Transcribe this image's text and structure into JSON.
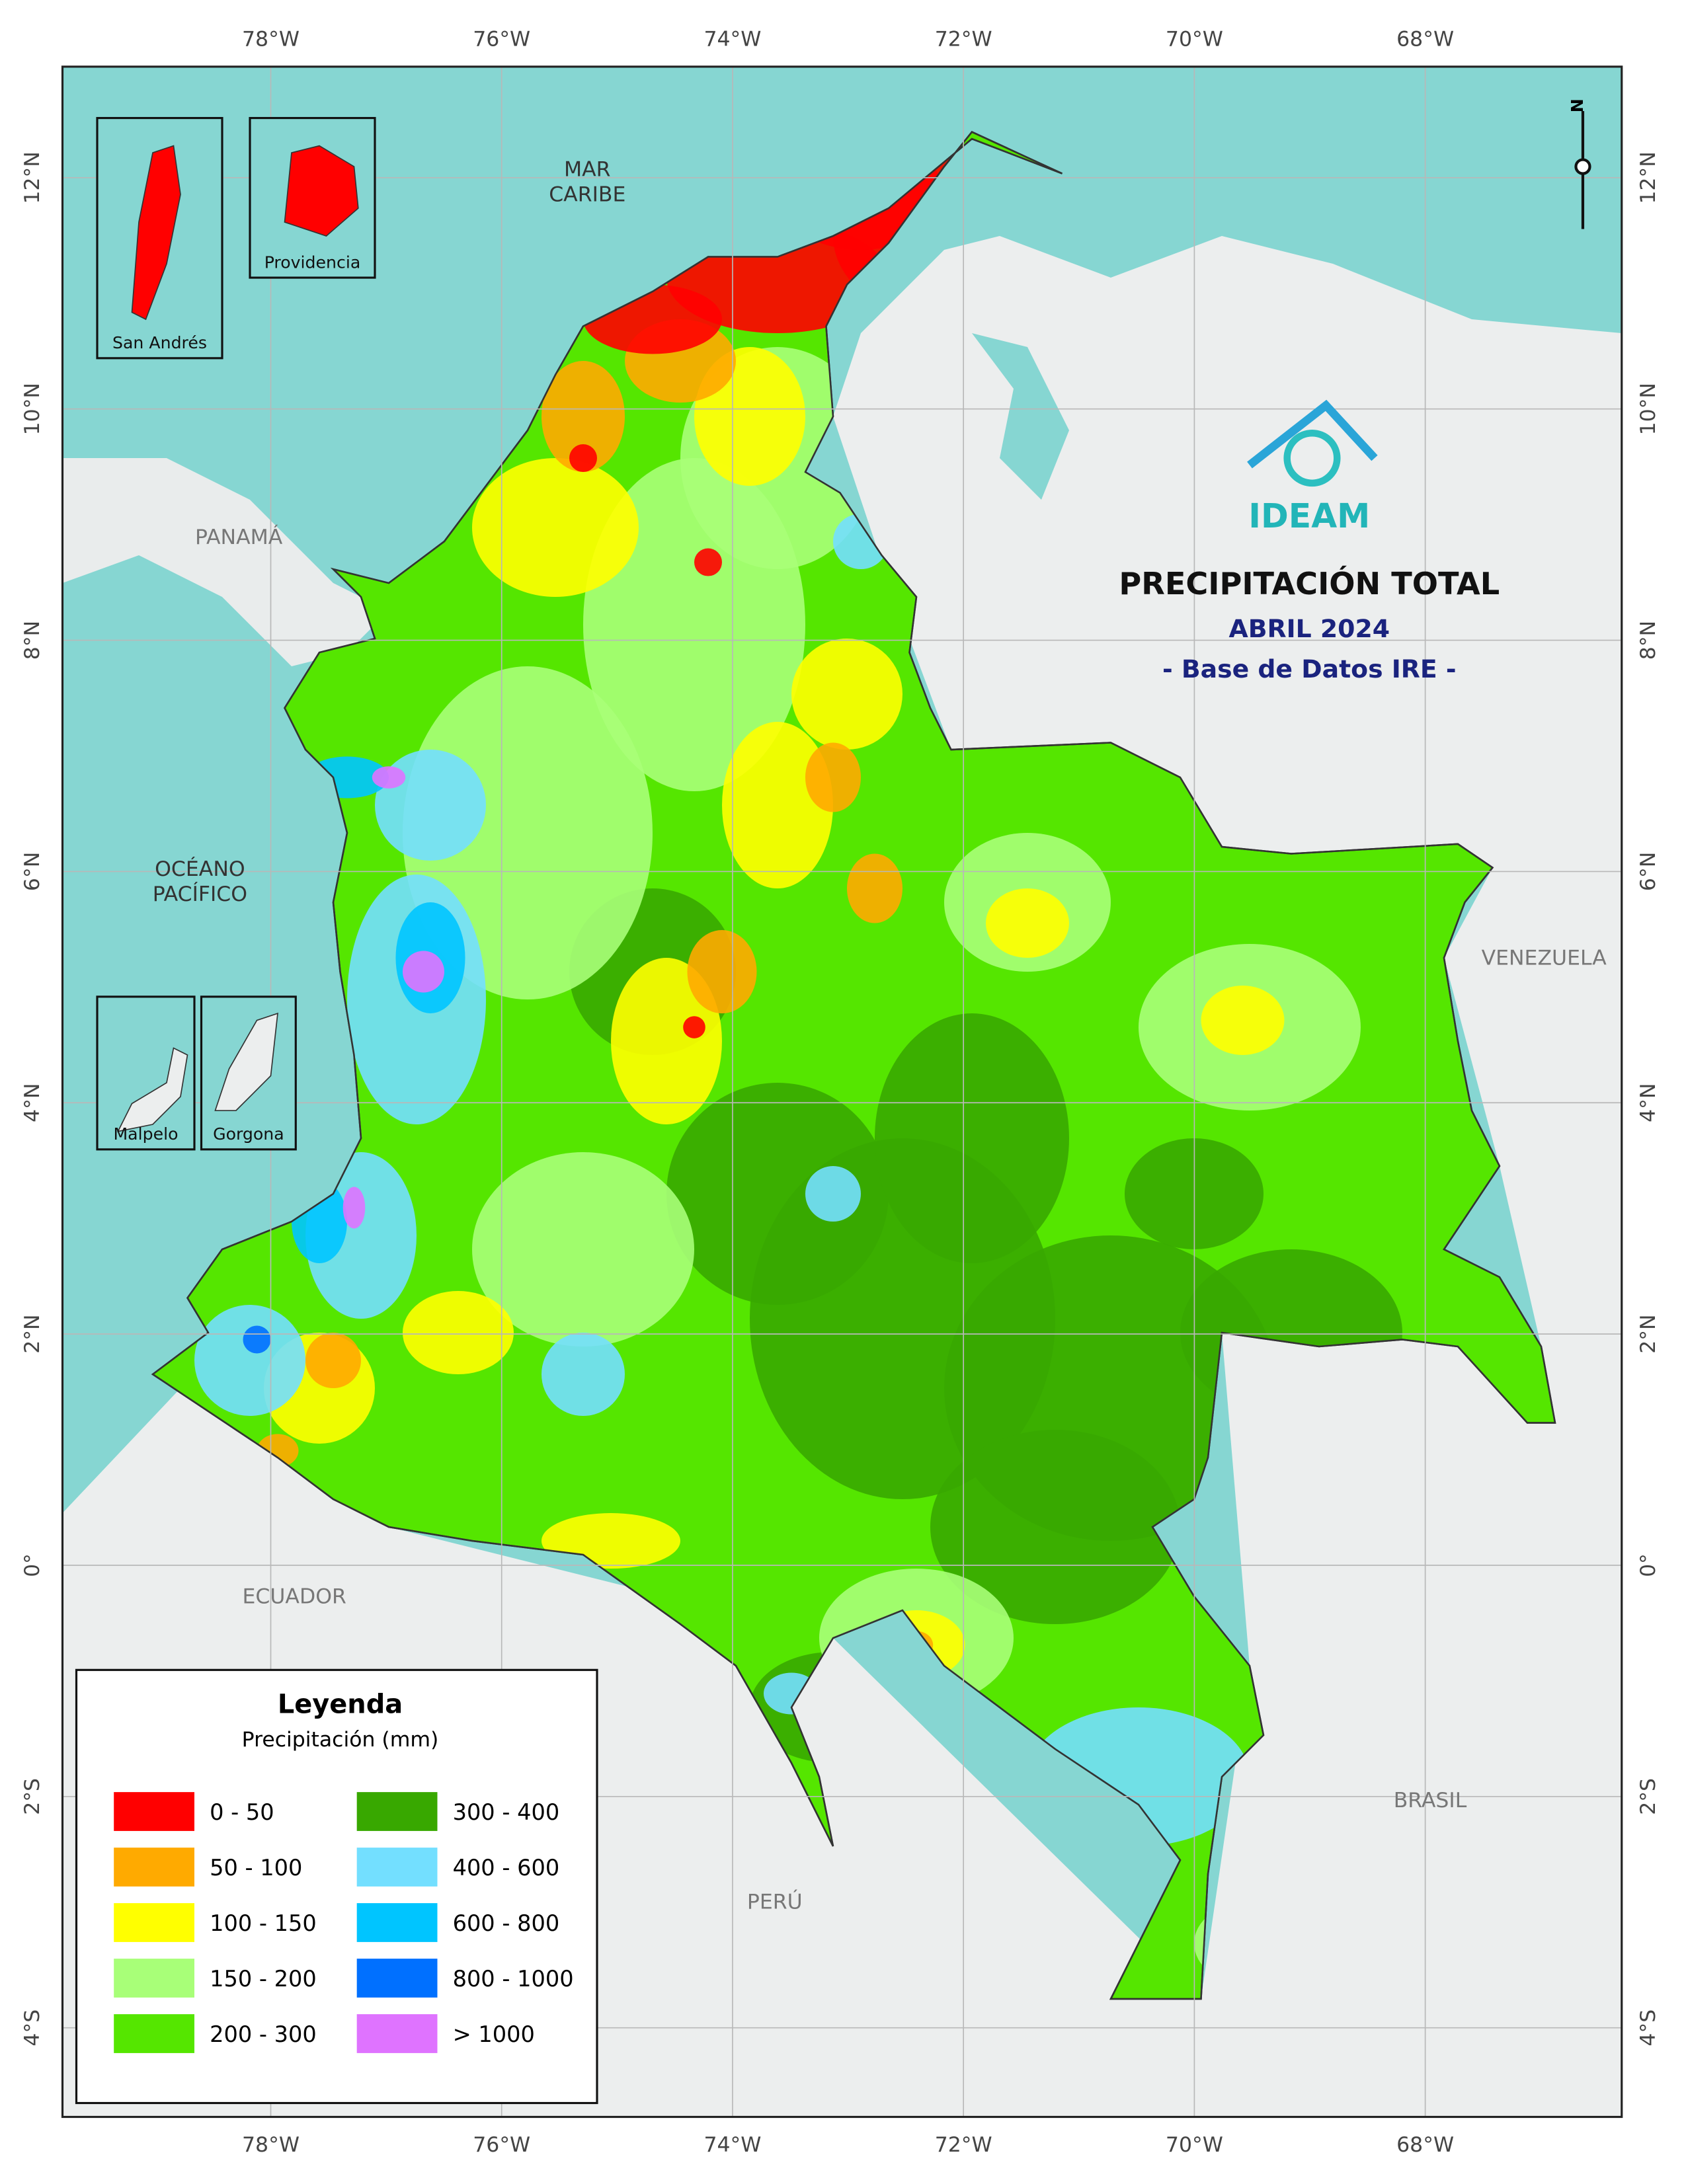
{
  "map": {
    "title": "PRECIPITACIÓN TOTAL",
    "subtitle": "ABRIL 2024",
    "source": "- Base de Datos IRE -",
    "logo_text": "IDEAM",
    "north_arrow": "N",
    "longitudes": [
      "78°W",
      "76°W",
      "74°W",
      "72°W",
      "70°W",
      "68°W"
    ],
    "latitudes": [
      "12°N",
      "10°N",
      "8°N",
      "6°N",
      "4°N",
      "2°N",
      "0°",
      "2°S",
      "4°S"
    ],
    "sea_labels": [
      [
        "MAR",
        "CARIBE"
      ],
      [
        "OCÉANO",
        "PACÍFICO"
      ]
    ],
    "countries": [
      "PANAMÁ",
      "VENEZUELA",
      "ECUADOR",
      "PERÚ",
      "BRASIL"
    ],
    "insets": [
      "San Andrés",
      "Providencia",
      "Malpelo",
      "Gorgona"
    ]
  },
  "legend": {
    "title": "Leyenda",
    "subtitle": "Precipitación (mm)",
    "items": [
      {
        "label": "0 - 50",
        "color": "#ff0000"
      },
      {
        "label": "50 - 100",
        "color": "#ffaa00"
      },
      {
        "label": "100 - 150",
        "color": "#ffff00"
      },
      {
        "label": "150 - 200",
        "color": "#a8ff78"
      },
      {
        "label": "200 - 300",
        "color": "#55e600"
      },
      {
        "label": "300 - 400",
        "color": "#38a800"
      },
      {
        "label": "400 - 600",
        "color": "#73dfff"
      },
      {
        "label": "600 - 800",
        "color": "#00c5ff"
      },
      {
        "label": "800 - 1000",
        "color": "#0070ff"
      },
      {
        "label": "> 1000",
        "color": "#df73ff"
      }
    ]
  }
}
